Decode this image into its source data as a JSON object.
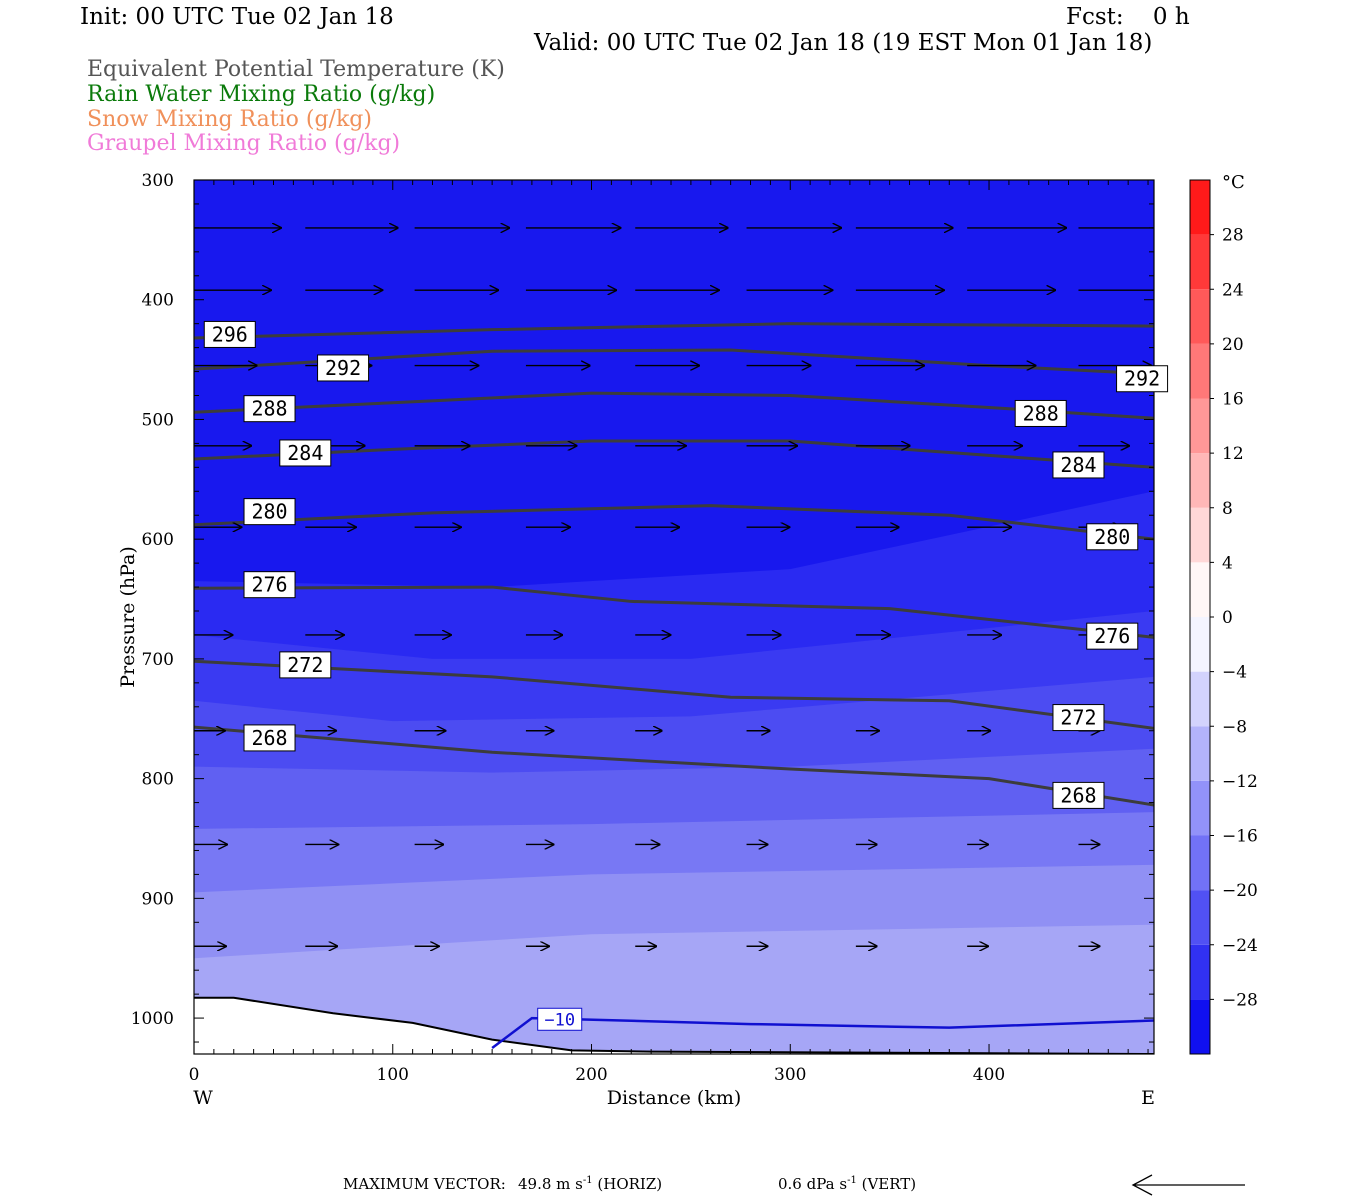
{
  "header": {
    "init": "Init: 00 UTC Tue 02 Jan 18",
    "fcst": "Fcst:    0 h",
    "valid": "Valid: 00 UTC Tue 02 Jan 18 (19 EST Mon 01 Jan 18)"
  },
  "fields": [
    {
      "label": "Equivalent Potential Temperature (K)",
      "color": "#555555"
    },
    {
      "label": "Rain Water Mixing Ratio (g/kg)",
      "color": "#0a7a0a"
    },
    {
      "label": "Snow Mixing Ratio (g/kg)",
      "color": "#f0905a"
    },
    {
      "label": "Graupel Mixing Ratio (g/kg)",
      "color": "#f07ad8"
    }
  ],
  "footer": {
    "max_vector_label": "MAXIMUM VECTOR:",
    "horiz_value": "49.8 m s",
    "horiz_unit": "(HORIZ)",
    "vert_value": "0.6 dPa s",
    "vert_unit": "(VERT)",
    "exponent": "-1"
  },
  "chart_data": {
    "type": "cross-section",
    "xlabel": "Distance (km)",
    "ylabel": "Pressure (hPa)",
    "x_ticks": [
      0,
      100,
      200,
      300,
      400
    ],
    "y_ticks": [
      300,
      400,
      500,
      600,
      700,
      800,
      900,
      1000
    ],
    "xlim": [
      0,
      483
    ],
    "ylim": [
      300,
      1030
    ],
    "x_end_labels": {
      "left": "W",
      "right": "E"
    },
    "colorbar": {
      "unit": "°C",
      "tick_labels": [
        "28",
        "24",
        "20",
        "16",
        "12",
        "8",
        "4",
        "0",
        "−4",
        "−8",
        "−12",
        "−16",
        "−20",
        "−24",
        "−28"
      ],
      "min": -32,
      "max": 32,
      "step": 4
    },
    "temperature_band_colors": {
      "-40": "#1818ee",
      "-32": "#1e1ef0",
      "-28": "#2a2af2",
      "-24": "#3a3af2",
      "-20": "#4c4cf2",
      "-16": "#6060f2",
      "-12": "#7878f4",
      "-8": "#9090f4",
      "-4": "#a6a6f6"
    },
    "temperature_bands": [
      {
        "min_temp": -28,
        "top": [
          [
            0,
            635
          ],
          [
            150,
            640
          ],
          [
            300,
            625
          ],
          [
            483,
            560
          ]
        ]
      },
      {
        "min_temp": -24,
        "top": [
          [
            0,
            680
          ],
          [
            120,
            700
          ],
          [
            250,
            700
          ],
          [
            483,
            660
          ]
        ]
      },
      {
        "min_temp": -20,
        "top": [
          [
            0,
            735
          ],
          [
            100,
            752
          ],
          [
            250,
            748
          ],
          [
            483,
            715
          ]
        ]
      },
      {
        "min_temp": -16,
        "top": [
          [
            0,
            790
          ],
          [
            150,
            795
          ],
          [
            300,
            790
          ],
          [
            483,
            775
          ]
        ]
      },
      {
        "min_temp": -12,
        "top": [
          [
            0,
            842
          ],
          [
            200,
            838
          ],
          [
            483,
            828
          ]
        ]
      },
      {
        "min_temp": -8,
        "top": [
          [
            0,
            895
          ],
          [
            200,
            880
          ],
          [
            483,
            872
          ]
        ]
      },
      {
        "min_temp": -4,
        "top": [
          [
            0,
            950
          ],
          [
            200,
            930
          ],
          [
            483,
            922
          ]
        ]
      }
    ],
    "theta_e_contours": [
      {
        "label": "296",
        "points": [
          [
            0,
            432
          ],
          [
            150,
            425
          ],
          [
            300,
            420
          ],
          [
            483,
            422
          ]
        ],
        "label_pos": [
          [
            18,
            429
          ]
        ]
      },
      {
        "label": "292",
        "points": [
          [
            0,
            458
          ],
          [
            150,
            443
          ],
          [
            270,
            442
          ],
          [
            400,
            455
          ],
          [
            483,
            462
          ]
        ],
        "label_pos": [
          [
            75,
            457
          ],
          [
            477,
            466
          ]
        ]
      },
      {
        "label": "288",
        "points": [
          [
            0,
            494
          ],
          [
            100,
            486
          ],
          [
            200,
            478
          ],
          [
            300,
            480
          ],
          [
            400,
            490
          ],
          [
            483,
            499
          ]
        ],
        "label_pos": [
          [
            38,
            491
          ],
          [
            426,
            495
          ]
        ]
      },
      {
        "label": "284",
        "points": [
          [
            0,
            533
          ],
          [
            100,
            525
          ],
          [
            200,
            518
          ],
          [
            300,
            518
          ],
          [
            400,
            530
          ],
          [
            483,
            540
          ]
        ],
        "label_pos": [
          [
            56,
            528
          ],
          [
            445,
            538
          ]
        ]
      },
      {
        "label": "280",
        "points": [
          [
            0,
            588
          ],
          [
            120,
            578
          ],
          [
            260,
            572
          ],
          [
            380,
            580
          ],
          [
            483,
            600
          ]
        ],
        "label_pos": [
          [
            38,
            577
          ],
          [
            462,
            598
          ]
        ]
      },
      {
        "label": "276",
        "points": [
          [
            0,
            641
          ],
          [
            150,
            640
          ],
          [
            220,
            652
          ],
          [
            350,
            658
          ],
          [
            483,
            682
          ]
        ],
        "label_pos": [
          [
            38,
            638
          ],
          [
            462,
            681
          ]
        ]
      },
      {
        "label": "272",
        "points": [
          [
            0,
            702
          ],
          [
            150,
            715
          ],
          [
            270,
            732
          ],
          [
            380,
            735
          ],
          [
            483,
            758
          ]
        ],
        "label_pos": [
          [
            56,
            705
          ],
          [
            445,
            749
          ]
        ]
      },
      {
        "label": "268",
        "points": [
          [
            0,
            757
          ],
          [
            150,
            778
          ],
          [
            300,
            792
          ],
          [
            400,
            800
          ],
          [
            483,
            822
          ]
        ],
        "label_pos": [
          [
            38,
            766
          ],
          [
            445,
            814
          ]
        ]
      }
    ],
    "temp_contour": {
      "label": "−10",
      "points": [
        [
          150,
          1025
        ],
        [
          170,
          1000
        ],
        [
          280,
          1005
        ],
        [
          380,
          1008
        ],
        [
          483,
          1002
        ]
      ],
      "label_pos": [
        [
          184,
          1001
        ]
      ]
    },
    "terrain": [
      [
        0,
        983
      ],
      [
        20,
        983
      ],
      [
        70,
        996
      ],
      [
        110,
        1004
      ],
      [
        150,
        1018
      ],
      [
        190,
        1027
      ],
      [
        230,
        1028
      ],
      [
        483,
        1030
      ]
    ],
    "wind_vectors": {
      "columns_km": [
        0,
        56,
        111,
        167,
        222,
        278,
        333,
        389,
        445
      ],
      "rows": [
        {
          "p": 340,
          "len": [
            0.79,
            0.84,
            0.86,
            0.86,
            0.84,
            0.86,
            0.88,
            0.9,
            0.95
          ]
        },
        {
          "p": 392,
          "len": [
            0.7,
            0.7,
            0.76,
            0.82,
            0.76,
            0.78,
            0.8,
            0.8,
            0.9
          ]
        },
        {
          "p": 455,
          "len": [
            0.57,
            0.6,
            0.58,
            0.58,
            0.58,
            0.58,
            0.62,
            0.62,
            0.66
          ]
        },
        {
          "p": 522,
          "len": [
            0.52,
            0.54,
            0.5,
            0.46,
            0.46,
            0.46,
            0.49,
            0.5,
            0.46
          ]
        },
        {
          "p": 590,
          "len": [
            0.43,
            0.46,
            0.42,
            0.4,
            0.4,
            0.39,
            0.39,
            0.4,
            0.39
          ]
        },
        {
          "p": 680,
          "len": [
            0.35,
            0.35,
            0.33,
            0.33,
            0.32,
            0.31,
            0.31,
            0.31,
            0.28
          ]
        },
        {
          "p": 760,
          "len": [
            0.28,
            0.28,
            0.28,
            0.25,
            0.24,
            0.21,
            0.21,
            0.21,
            0.19
          ]
        },
        {
          "p": 855,
          "len": [
            0.3,
            0.3,
            0.26,
            0.25,
            0.22,
            0.19,
            0.19,
            0.19,
            0.19
          ]
        },
        {
          "p": 940,
          "len": [
            0.29,
            0.29,
            0.22,
            0.21,
            0.19,
            0.19,
            0.19,
            0.19,
            0.19
          ]
        }
      ],
      "max_vector_ms": 49.8,
      "max_vertical_dPa_s": 0.6
    }
  }
}
